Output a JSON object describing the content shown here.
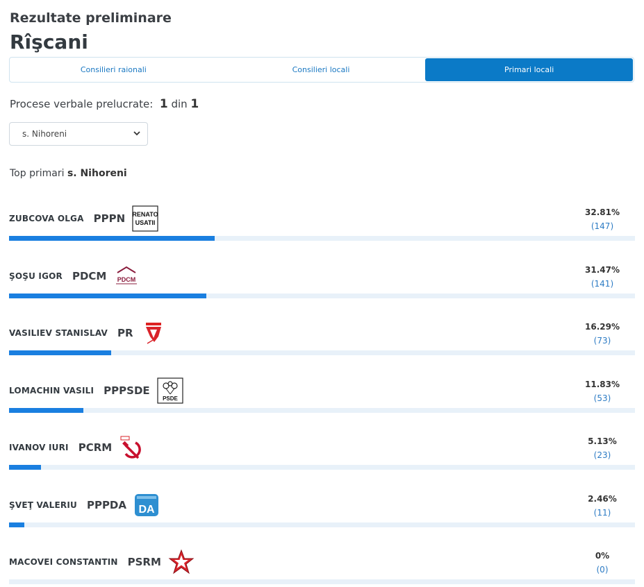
{
  "header": {
    "subtitle": "Rezultate preliminare",
    "title": "Rîşcani"
  },
  "tabs": [
    {
      "label": "Consilieri raionali",
      "active": false
    },
    {
      "label": "Consilieri locali",
      "active": false
    },
    {
      "label": "Primari locali",
      "active": true
    }
  ],
  "processed": {
    "label": "Procese verbale prelucrate:",
    "done": "1",
    "sep": "din",
    "total": "1"
  },
  "locality_select": {
    "value": "s. Nihoreni"
  },
  "top": {
    "label": "Top primari",
    "locality": "s. Nihoreni"
  },
  "colors": {
    "accent": "#0b7ac7",
    "bar": "#1a7fe0",
    "track": "#e8f1f9"
  },
  "candidates": [
    {
      "name": "ZUBCOVA OLGA",
      "party": "PPPN",
      "logo": "renato-usatii-logo",
      "logo_text": [
        "RENATO",
        "USATII"
      ],
      "percent": "32.81%",
      "votes": "(147)",
      "share": 32.81
    },
    {
      "name": "ŞOŞU IGOR",
      "party": "PDCM",
      "logo": "pdcm-logo",
      "logo_text": [
        "PDCM"
      ],
      "percent": "31.47%",
      "votes": "(141)",
      "share": 31.47
    },
    {
      "name": "VASILIEV STANISLAV",
      "party": "PR",
      "logo": "pr-logo",
      "logo_text": [],
      "percent": "16.29%",
      "votes": "(73)",
      "share": 16.29
    },
    {
      "name": "LOMACHIN VASILI",
      "party": "PPPSDE",
      "logo": "psde-logo",
      "logo_text": [
        "PSDE"
      ],
      "percent": "11.83%",
      "votes": "(53)",
      "share": 11.83
    },
    {
      "name": "IVANOV IURI",
      "party": "PCRM",
      "logo": "pcrm-logo",
      "logo_text": [],
      "percent": "5.13%",
      "votes": "(23)",
      "share": 5.13
    },
    {
      "name": "ŞVEŢ VALERIU",
      "party": "PPPDA",
      "logo": "da-logo",
      "logo_text": [
        "DA"
      ],
      "percent": "2.46%",
      "votes": "(11)",
      "share": 2.46
    },
    {
      "name": "MACOVEI CONSTANTIN",
      "party": "PSRM",
      "logo": "psrm-logo",
      "logo_text": [],
      "percent": "0%",
      "votes": "(0)",
      "share": 0
    }
  ]
}
